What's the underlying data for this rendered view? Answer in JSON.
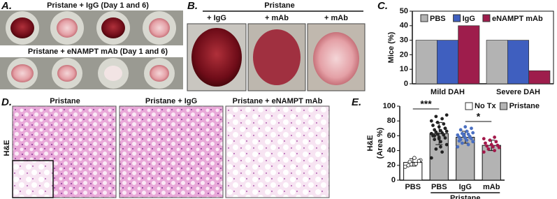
{
  "panel_a": {
    "label": "A.",
    "row_titles": [
      "Pristane + IgG (Day 1 and 6)",
      "Pristane + eNAMPT mAb (Day 1 and 6)"
    ]
  },
  "panel_b": {
    "label": "B.",
    "title": "Pristane",
    "captions": [
      "+ IgG",
      "+ mAb",
      "+ mAb"
    ]
  },
  "panel_d": {
    "label": "D.",
    "row_label": "H&E",
    "captions": [
      "Pristane",
      "Pristane + IgG",
      "Pristane + eNAMPT mAb"
    ]
  },
  "chart_data": [
    {
      "type": "bar",
      "panel_label": "C.",
      "y_label": "Mice (%)",
      "categories": [
        "Mild DAH",
        "Severe DAH"
      ],
      "series": [
        {
          "name": "PBS",
          "color": "#b3b3b3",
          "values": [
            30,
            30
          ]
        },
        {
          "name": "IgG",
          "color": "#3f5fbf",
          "values": [
            30,
            30
          ]
        },
        {
          "name": "eNAMPT mAb",
          "color": "#9e1d4c",
          "values": [
            40,
            9
          ]
        }
      ],
      "ylim": [
        0,
        50
      ],
      "yticks": [
        0,
        10,
        20,
        30,
        40,
        50
      ],
      "legend": "top"
    },
    {
      "type": "bar_scatter",
      "panel_label": "E.",
      "y_label": [
        "H&E",
        "(Area %)"
      ],
      "categories": [
        "PBS",
        "PBS",
        "IgG",
        "mAb"
      ],
      "group_label": "Pristane",
      "series": [
        {
          "name": "No Tx",
          "color": "#ffffff",
          "values": [
            24,
            null,
            null,
            null
          ]
        },
        {
          "name": "Pristane",
          "color": "#b3b3b3",
          "values": [
            null,
            63,
            58,
            47
          ]
        }
      ],
      "errors": [
        5,
        15,
        8,
        7
      ],
      "points": [
        [
          18,
          22,
          25,
          27,
          30,
          20,
          26
        ],
        [
          30,
          38,
          42,
          48,
          52,
          55,
          57,
          58,
          60,
          61,
          62,
          63,
          64,
          65,
          66,
          67,
          68,
          70,
          72,
          74,
          76,
          78,
          80,
          83,
          86,
          88,
          45,
          60,
          70,
          56
        ],
        [
          45,
          48,
          50,
          52,
          54,
          55,
          56,
          57,
          58,
          59,
          60,
          61,
          62,
          63,
          64,
          66,
          68,
          70,
          72,
          53,
          58,
          62
        ],
        [
          38,
          40,
          42,
          44,
          45,
          46,
          47,
          48,
          50,
          52,
          54,
          56,
          58
        ]
      ],
      "point_colors": [
        "#ffffff",
        "#222222",
        "#4a6fc1",
        "#a3184a"
      ],
      "annotations": [
        "***",
        "*"
      ],
      "ylim": [
        0,
        100
      ],
      "yticks": [
        0,
        20,
        40,
        60,
        80,
        100
      ],
      "legend": "top-right"
    }
  ]
}
